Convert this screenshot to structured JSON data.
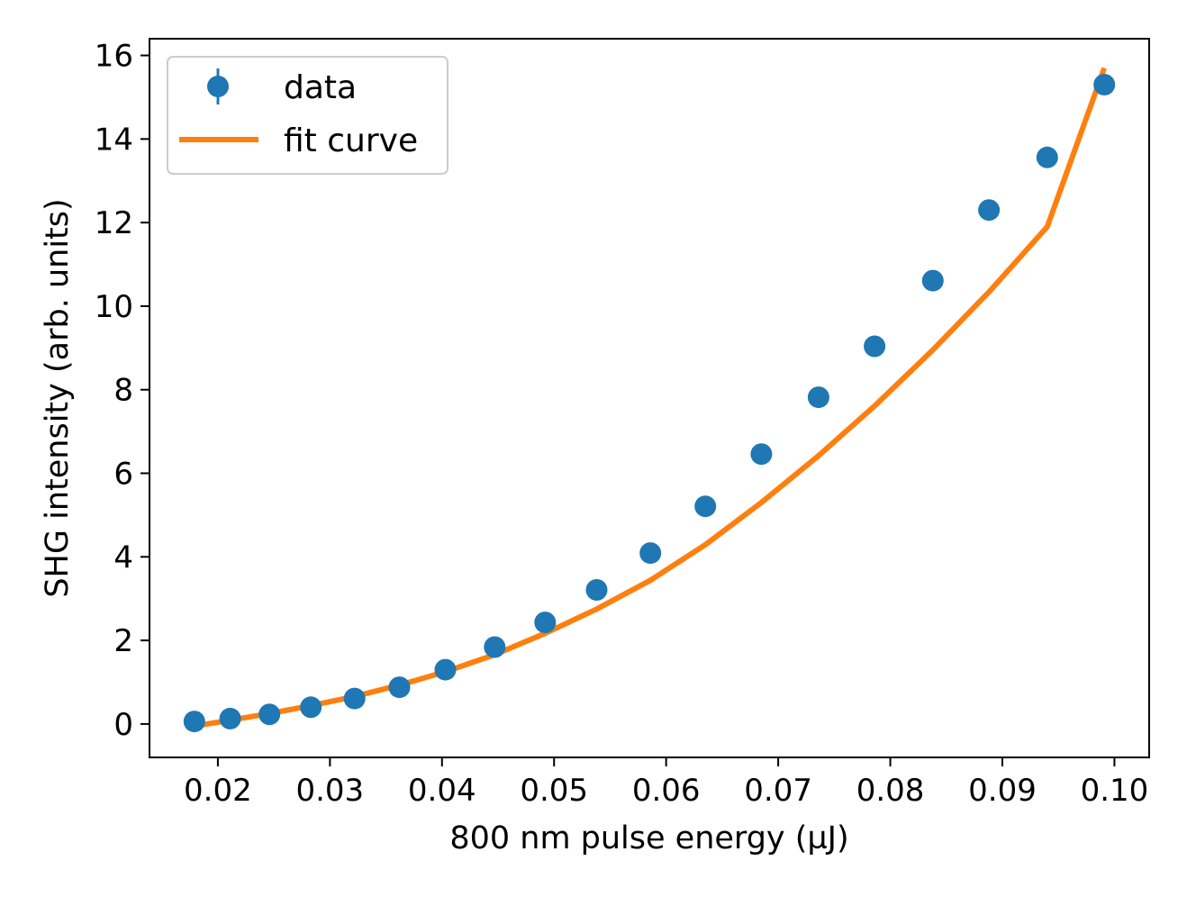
{
  "chart_data": {
    "type": "scatter",
    "xlabel": "800 nm pulse energy (µJ)",
    "ylabel": "SHG intensity (arb. units)",
    "xlim": [
      0.0139,
      0.1031
    ],
    "ylim": [
      -0.8,
      16.4
    ],
    "xticks": [
      0.02,
      0.03,
      0.04,
      0.05,
      0.06,
      0.07,
      0.08,
      0.09,
      0.1
    ],
    "xtick_labels": [
      "0.02",
      "0.03",
      "0.04",
      "0.05",
      "0.06",
      "0.07",
      "0.08",
      "0.09",
      "0.10"
    ],
    "yticks": [
      0,
      2,
      4,
      6,
      8,
      10,
      12,
      14,
      16
    ],
    "ytick_labels": [
      "0",
      "2",
      "4",
      "6",
      "8",
      "10",
      "12",
      "14",
      "16"
    ],
    "grid": false,
    "legend_position": "top-left",
    "series": [
      {
        "name": "data",
        "kind": "errorbar-points",
        "color": "#1f77b4",
        "x": [
          0.0179,
          0.0211,
          0.0246,
          0.0283,
          0.0322,
          0.0362,
          0.0403,
          0.0447,
          0.0492,
          0.0538,
          0.0586,
          0.0635,
          0.0685,
          0.0736,
          0.0786,
          0.0838,
          0.0888,
          0.094,
          0.0991
        ],
        "y": [
          0.06,
          0.13,
          0.23,
          0.4,
          0.61,
          0.88,
          1.3,
          1.84,
          2.43,
          3.21,
          4.09,
          5.21,
          6.46,
          7.82,
          9.04,
          10.61,
          12.3,
          13.56,
          15.3
        ]
      },
      {
        "name": "fit curve",
        "kind": "line",
        "color": "#ff7f0e",
        "x": [
          0.0179,
          0.0211,
          0.0246,
          0.0283,
          0.0322,
          0.0362,
          0.0403,
          0.0447,
          0.0492,
          0.0538,
          0.0586,
          0.0635,
          0.0685,
          0.0736,
          0.0786,
          0.0838,
          0.0888,
          0.094,
          0.0991
        ],
        "y": [
          -0.05,
          0.09,
          0.25,
          0.44,
          0.66,
          0.93,
          1.25,
          1.66,
          2.17,
          2.75,
          3.44,
          4.29,
          5.3,
          6.42,
          7.61,
          8.95,
          10.34,
          11.9,
          15.7
        ]
      }
    ]
  }
}
